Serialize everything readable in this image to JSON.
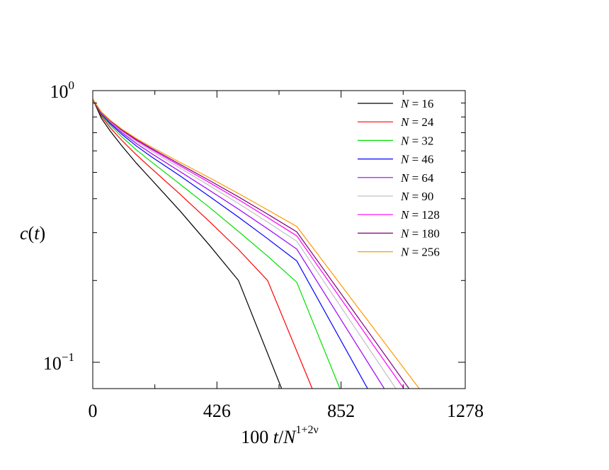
{
  "chart_data": {
    "type": "line",
    "title": "",
    "xlabel": {
      "prefix": "100 ",
      "var_t": "t",
      "slash": "/",
      "var_N": "N",
      "exponent": "1+2ν"
    },
    "ylabel": {
      "func": "c",
      "open": "(",
      "var": "t",
      "close": ")"
    },
    "x_scale": "linear",
    "y_scale": "log",
    "xlim": [
      0,
      1278
    ],
    "ylim": [
      0.08,
      1.0
    ],
    "x_ticks": [
      {
        "value": 0,
        "label": "0"
      },
      {
        "value": 426,
        "label": "426"
      },
      {
        "value": 852,
        "label": "852"
      },
      {
        "value": 1278,
        "label": "1278"
      }
    ],
    "x_minor_ticks": [
      213,
      639,
      1065
    ],
    "y_major_ticks": [
      {
        "value": 1.0,
        "base": "10",
        "exp": "0"
      },
      {
        "value": 0.1,
        "base": "10",
        "exp": "−1"
      }
    ],
    "y_minor_ticks": [
      0.2,
      0.3,
      0.4,
      0.5,
      0.6,
      0.7,
      0.8,
      0.9
    ],
    "grid": false,
    "legend": {
      "position": "top-right",
      "symbol": "N",
      "equals": " = "
    },
    "series": [
      {
        "name": "16",
        "color": "#000000",
        "x": [
          0,
          30,
          60,
          100,
          150,
          200,
          300,
          400,
          500,
          648
        ],
        "y": [
          0.93,
          0.79,
          0.71,
          0.625,
          0.54,
          0.472,
          0.36,
          0.27,
          0.2,
          0.08
        ]
      },
      {
        "name": "24",
        "color": "#ff0000",
        "x": [
          0,
          30,
          60,
          100,
          150,
          200,
          300,
          400,
          500,
          600,
          753
        ],
        "y": [
          0.93,
          0.805,
          0.73,
          0.655,
          0.58,
          0.518,
          0.415,
          0.33,
          0.26,
          0.2,
          0.08
        ]
      },
      {
        "name": "32",
        "color": "#00e000",
        "x": [
          0,
          30,
          60,
          100,
          150,
          200,
          300,
          400,
          500,
          600,
          700,
          848
        ],
        "y": [
          0.93,
          0.815,
          0.745,
          0.675,
          0.605,
          0.548,
          0.452,
          0.372,
          0.303,
          0.246,
          0.197,
          0.08
        ]
      },
      {
        "name": "46",
        "color": "#0000ff",
        "x": [
          0,
          30,
          60,
          100,
          150,
          200,
          300,
          400,
          500,
          600,
          700,
          943
        ],
        "y": [
          0.93,
          0.82,
          0.755,
          0.69,
          0.625,
          0.572,
          0.485,
          0.408,
          0.342,
          0.285,
          0.236,
          0.08
        ]
      },
      {
        "name": "64",
        "color": "#9900ff",
        "x": [
          0,
          30,
          60,
          100,
          150,
          200,
          300,
          400,
          500,
          600,
          700,
          1000
        ],
        "y": [
          0.93,
          0.825,
          0.762,
          0.7,
          0.638,
          0.588,
          0.503,
          0.43,
          0.366,
          0.31,
          0.261,
          0.08
        ]
      },
      {
        "name": "90",
        "color": "#c0c0c0",
        "x": [
          0,
          30,
          60,
          100,
          150,
          200,
          300,
          400,
          500,
          600,
          700,
          1040
        ],
        "y": [
          0.93,
          0.828,
          0.768,
          0.708,
          0.648,
          0.6,
          0.518,
          0.447,
          0.384,
          0.328,
          0.279,
          0.08
        ]
      },
      {
        "name": "128",
        "color": "#ff00ff",
        "x": [
          0,
          30,
          60,
          100,
          150,
          200,
          300,
          400,
          500,
          600,
          700,
          1067
        ],
        "y": [
          0.93,
          0.83,
          0.772,
          0.713,
          0.655,
          0.608,
          0.528,
          0.459,
          0.397,
          0.341,
          0.292,
          0.08
        ]
      },
      {
        "name": "180",
        "color": "#800080",
        "x": [
          0,
          30,
          60,
          100,
          150,
          200,
          300,
          400,
          500,
          600,
          700,
          1085
        ],
        "y": [
          0.93,
          0.832,
          0.775,
          0.717,
          0.66,
          0.614,
          0.535,
          0.467,
          0.406,
          0.351,
          0.302,
          0.08
        ]
      },
      {
        "name": "256",
        "color": "#ff9900",
        "x": [
          0,
          30,
          60,
          100,
          150,
          200,
          300,
          400,
          500,
          600,
          700,
          1120
        ],
        "y": [
          0.93,
          0.834,
          0.778,
          0.721,
          0.666,
          0.621,
          0.544,
          0.478,
          0.418,
          0.364,
          0.316,
          0.08
        ]
      }
    ]
  }
}
